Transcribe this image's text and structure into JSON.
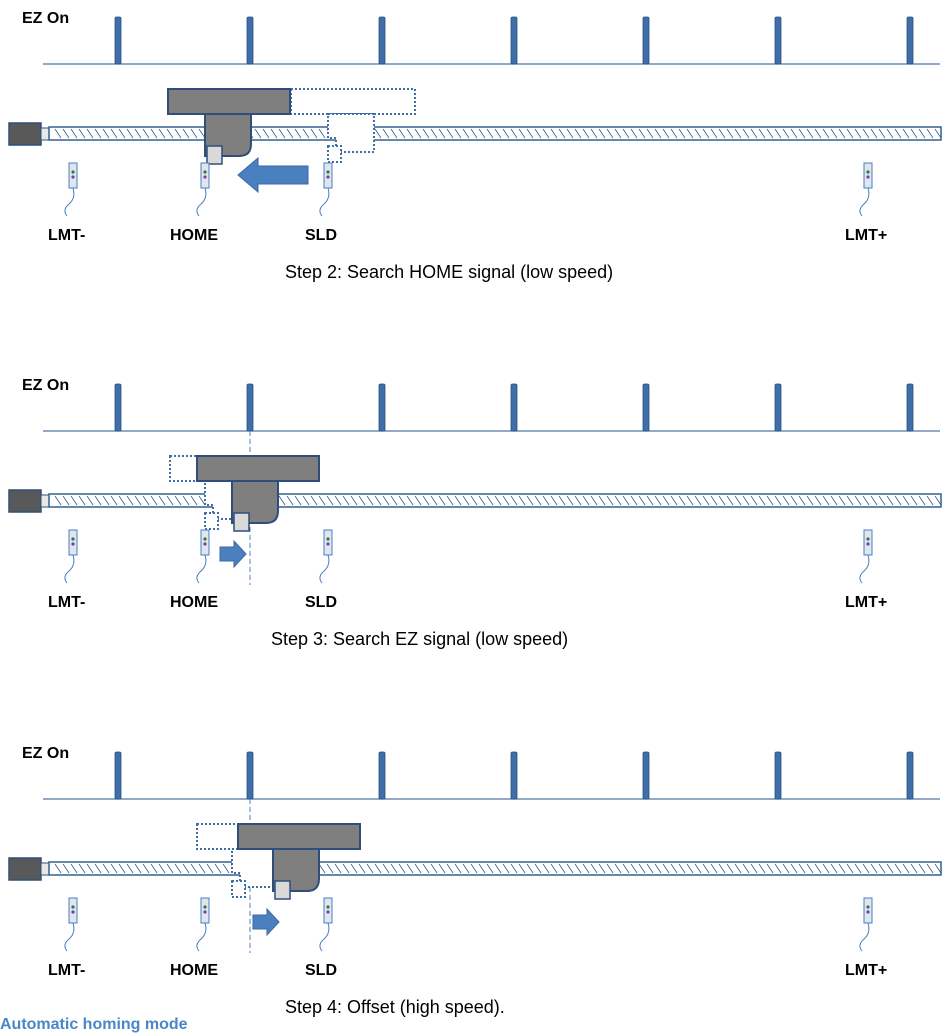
{
  "ez_label": "EZ On",
  "sensor_labels": {
    "lmt_minus": "LMT-",
    "home": "HOME",
    "sld": "SLD",
    "lmt_plus": "LMT+"
  },
  "panels": [
    {
      "id": "step2",
      "caption": "Step 2: Search HOME signal (low speed)",
      "arrow_direction": "left"
    },
    {
      "id": "step3",
      "caption": "Step 3: Search EZ signal (low speed)",
      "arrow_direction": "right"
    },
    {
      "id": "step4",
      "caption": "Step 4: Offset (high speed).",
      "arrow_direction": "right"
    }
  ],
  "footer_text": "Automatic homing mode",
  "colors": {
    "ez_pulse": "#3e6fa8",
    "ez_line": "#4f78a8",
    "carriage_fill": "#7f7f7f",
    "carriage_stroke": "#2f4f7a",
    "ghost_outline": "#3e6fa8",
    "arrow_fill": "#4a7fc0",
    "sensor_stroke": "#4a7fc0",
    "sensor_fill": "#dfe6f0",
    "screw_stroke": "#34618f",
    "motor_fill": "#595959",
    "label_text": "#000000"
  }
}
